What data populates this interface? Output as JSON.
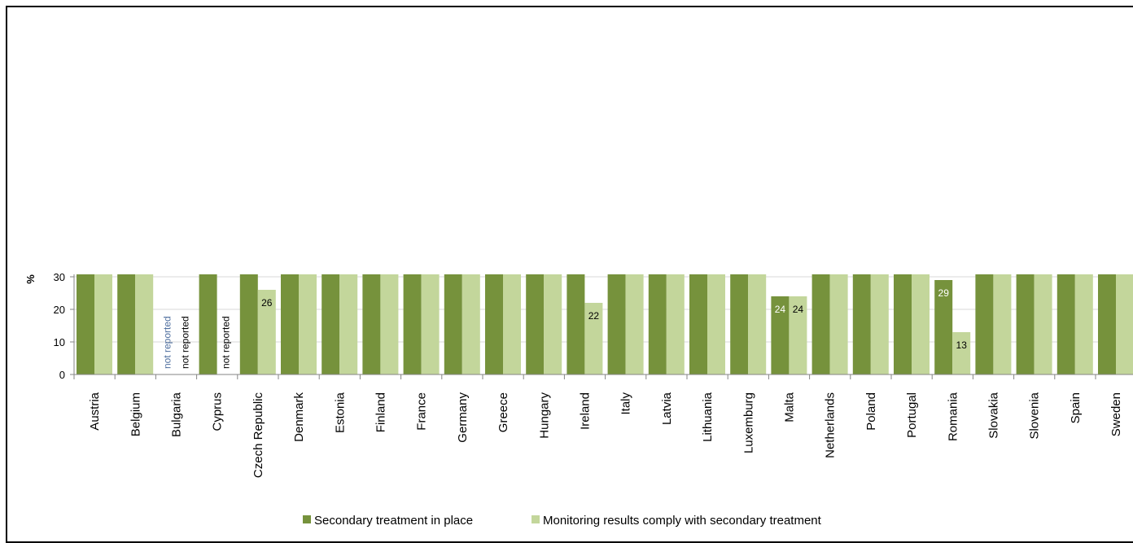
{
  "chart_data": {
    "type": "bar",
    "ylabel": "%",
    "ylim": [
      0,
      100
    ],
    "yticks": [
      0,
      10,
      20,
      30
    ],
    "grid": true,
    "legend_position": "bottom",
    "categories": [
      "Austria",
      "Belgium",
      "Bulgaria",
      "Cyprus",
      "Czech Republic",
      "Denmark",
      "Estonia",
      "Finland",
      "France",
      "Germany",
      "Greece",
      "Hungary",
      "Ireland",
      "Italy",
      "Latvia",
      "Lithuania",
      "Luxemburg",
      "Malta",
      "Netherlands",
      "Poland",
      "Portugal",
      "Romania",
      "Slovakia",
      "Slovenia",
      "Spain",
      "Sweden"
    ],
    "series": [
      {
        "name": "Secondary treatment in place",
        "color": "#76923c",
        "values": [
          100,
          100,
          null,
          100,
          100,
          100,
          100,
          100,
          100,
          100,
          100,
          100,
          100,
          100,
          100,
          100,
          100,
          24,
          100,
          100,
          100,
          29,
          100,
          100,
          100,
          100
        ],
        "labels": [
          null,
          null,
          "not reported",
          null,
          null,
          null,
          null,
          null,
          null,
          null,
          null,
          null,
          null,
          null,
          null,
          null,
          null,
          "24",
          null,
          null,
          null,
          "29",
          null,
          null,
          null,
          null
        ]
      },
      {
        "name": "Monitoring results comply with secondary treatment",
        "color": "#c3d69b",
        "values": [
          100,
          100,
          null,
          null,
          26,
          100,
          100,
          100,
          100,
          100,
          100,
          100,
          22,
          100,
          100,
          100,
          100,
          24,
          100,
          100,
          100,
          13,
          100,
          100,
          100,
          100
        ],
        "labels": [
          null,
          null,
          "not reported",
          "not reported",
          "26",
          null,
          null,
          null,
          null,
          null,
          null,
          null,
          "22",
          null,
          null,
          null,
          null,
          "24",
          null,
          null,
          null,
          "13",
          null,
          null,
          null,
          null
        ]
      }
    ]
  }
}
